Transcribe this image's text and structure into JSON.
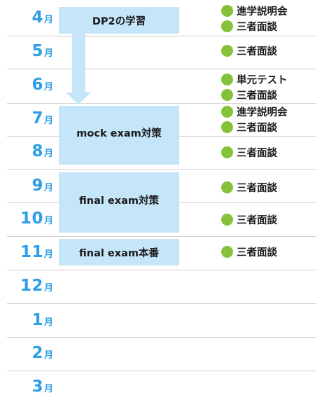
{
  "months": [
    {
      "num": "4",
      "unit": "月"
    },
    {
      "num": "5",
      "unit": "月"
    },
    {
      "num": "6",
      "unit": "月"
    },
    {
      "num": "7",
      "unit": "月"
    },
    {
      "num": "8",
      "unit": "月"
    },
    {
      "num": "9",
      "unit": "月"
    },
    {
      "num": "10",
      "unit": "月"
    },
    {
      "num": "11",
      "unit": "月"
    },
    {
      "num": "12",
      "unit": "月"
    },
    {
      "num": "1",
      "unit": "月"
    },
    {
      "num": "2",
      "unit": "月"
    },
    {
      "num": "3",
      "unit": "月"
    }
  ],
  "phases": [
    {
      "label": "DP2の学習"
    },
    {
      "label": "mock exam対策"
    },
    {
      "label": "final exam対策"
    },
    {
      "label": "final exam本番"
    }
  ],
  "events": [
    {
      "label": "進学説明会"
    },
    {
      "label": "三者面談"
    },
    {
      "label": "三者面談"
    },
    {
      "label": "単元テスト"
    },
    {
      "label": "三者面談"
    },
    {
      "label": "進学説明会"
    },
    {
      "label": "三者面談"
    },
    {
      "label": "三者面談"
    },
    {
      "label": "三者面談"
    },
    {
      "label": "三者面談"
    },
    {
      "label": "三者面談"
    }
  ],
  "colors": {
    "month_text": "#2e9ee6",
    "phase_box": "#c5e6f9",
    "event_dot": "#84c23a",
    "divider": "#cfcfcf"
  }
}
